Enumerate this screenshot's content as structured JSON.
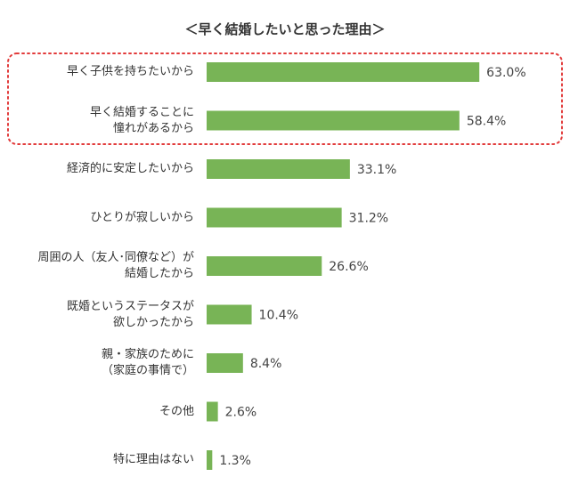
{
  "chart_data": {
    "type": "bar",
    "orientation": "horizontal",
    "title": "＜早く結婚したいと思った理由＞",
    "categories": [
      "早く子供を持ちたいから",
      "早く結婚することに\n憧れがあるから",
      "経済的に安定したいから",
      "ひとりが寂しいから",
      "周囲の人（友人･同僚など）が\n結婚したから",
      "既婚というステータスが\n欲しかったから",
      "親・家族のために\n（家庭の事情で）",
      "その他",
      "特に理由はない"
    ],
    "values": [
      63.0,
      58.4,
      33.1,
      31.2,
      26.6,
      10.4,
      8.4,
      2.6,
      1.3
    ],
    "value_labels": [
      "63.0%",
      "58.4%",
      "33.1%",
      "31.2%",
      "26.6%",
      "10.4%",
      "8.4%",
      "2.6%",
      "1.3%"
    ],
    "color": "#78b456"
  }
}
